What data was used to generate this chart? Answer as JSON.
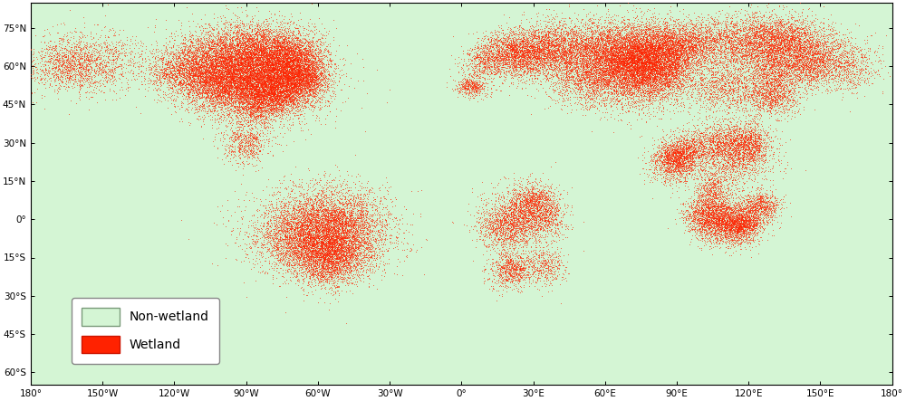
{
  "title": "",
  "background_color": "#ffffff",
  "ocean_color": "#ffffff",
  "land_nonwetland_color": "#d4f5d4",
  "wetland_color": "#ff2200",
  "border_color": "#888888",
  "legend_nonwetland_label": "Non-wetland",
  "legend_wetland_label": "Wetland",
  "legend_nonwetland_facecolor": "#d4f5d4",
  "legend_nonwetland_edgecolor": "#7a9a7a",
  "legend_wetland_facecolor": "#ff2200",
  "legend_wetland_edgecolor": "#cc1400",
  "x_ticks": [
    -180,
    -150,
    -120,
    -90,
    -60,
    -30,
    0,
    30,
    60,
    90,
    120,
    150,
    180
  ],
  "x_tick_labels": [
    "180°",
    "150°W",
    "120°W",
    "90°W",
    "60°W",
    "30°W",
    "0°",
    "30°E",
    "60°E",
    "90°E",
    "120°E",
    "150°E",
    "180°"
  ],
  "y_ticks": [
    75,
    60,
    45,
    30,
    15,
    0,
    -15,
    -30,
    -45,
    -60
  ],
  "y_tick_labels": [
    "75°N",
    "60°N",
    "45°N",
    "30°N",
    "15°N",
    "0°",
    "15°S",
    "30°S",
    "45°S",
    "60°S"
  ],
  "xlim": [
    -180,
    180
  ],
  "ylim": [
    -65,
    85
  ],
  "figsize": [
    10.0,
    4.43
  ],
  "dpi": 100,
  "tick_fontsize": 7.5,
  "legend_fontsize": 10,
  "coastline_linewidth": 0.3,
  "coastline_color": "#555555",
  "wetland_regions": [
    {
      "lon": -85,
      "lat": 55,
      "lons": 14,
      "lats": 8,
      "n": 4000
    },
    {
      "lon": -95,
      "lat": 60,
      "lons": 12,
      "lats": 7,
      "n": 3500
    },
    {
      "lon": -80,
      "lat": 52,
      "lons": 10,
      "lats": 5,
      "n": 2000
    },
    {
      "lon": -75,
      "lat": 63,
      "lons": 8,
      "lats": 6,
      "n": 2500
    },
    {
      "lon": -88,
      "lat": 67,
      "lons": 10,
      "lats": 5,
      "n": 1500
    },
    {
      "lon": -155,
      "lat": 62,
      "lons": 12,
      "lats": 6,
      "n": 1200
    },
    {
      "lon": -165,
      "lat": 60,
      "lons": 8,
      "lats": 5,
      "n": 700
    },
    {
      "lon": -68,
      "lat": 60,
      "lons": 6,
      "lats": 5,
      "n": 1500
    },
    {
      "lon": 68,
      "lat": 60,
      "lons": 12,
      "lats": 8,
      "n": 3500
    },
    {
      "lon": 75,
      "lat": 62,
      "lons": 10,
      "lats": 7,
      "n": 3000
    },
    {
      "lon": 82,
      "lat": 58,
      "lons": 8,
      "lats": 6,
      "n": 2000
    },
    {
      "lon": 60,
      "lat": 65,
      "lons": 10,
      "lats": 6,
      "n": 2000
    },
    {
      "lon": 40,
      "lat": 68,
      "lons": 8,
      "lats": 5,
      "n": 1500
    },
    {
      "lon": 125,
      "lat": 68,
      "lons": 10,
      "lats": 6,
      "n": 2000
    },
    {
      "lon": 140,
      "lat": 65,
      "lons": 10,
      "lats": 5,
      "n": 1500
    },
    {
      "lon": 100,
      "lat": 70,
      "lons": 12,
      "lats": 5,
      "n": 1500
    },
    {
      "lon": 110,
      "lat": 52,
      "lons": 8,
      "lats": 5,
      "n": 1000
    },
    {
      "lon": 130,
      "lat": 48,
      "lons": 6,
      "lats": 4,
      "n": 800
    },
    {
      "lon": -60,
      "lat": -5,
      "lons": 15,
      "lats": 8,
      "n": 2500
    },
    {
      "lon": -55,
      "lat": 0,
      "lons": 12,
      "lats": 7,
      "n": 2000
    },
    {
      "lon": -65,
      "lat": -10,
      "lons": 10,
      "lats": 6,
      "n": 1500
    },
    {
      "lon": -50,
      "lat": -15,
      "lons": 8,
      "lats": 5,
      "n": 1000
    },
    {
      "lon": -55,
      "lat": -5,
      "lons": 10,
      "lats": 6,
      "n": 1500
    },
    {
      "lon": 23,
      "lat": 0,
      "lons": 8,
      "lats": 6,
      "n": 1000
    },
    {
      "lon": 18,
      "lat": -3,
      "lons": 6,
      "lats": 4,
      "n": 700
    },
    {
      "lon": 28,
      "lat": 5,
      "lons": 5,
      "lats": 4,
      "n": 600
    },
    {
      "lon": 35,
      "lat": -18,
      "lons": 4,
      "lats": 4,
      "n": 400
    },
    {
      "lon": 103,
      "lat": 1,
      "lons": 5,
      "lats": 4,
      "n": 1200
    },
    {
      "lon": 110,
      "lat": 0,
      "lons": 6,
      "lats": 5,
      "n": 1000
    },
    {
      "lon": 115,
      "lat": -2,
      "lons": 5,
      "lats": 4,
      "n": 900
    },
    {
      "lon": 125,
      "lat": 5,
      "lons": 4,
      "lats": 3,
      "n": 700
    },
    {
      "lon": 118,
      "lat": -2,
      "lons": 4,
      "lats": 3,
      "n": 600
    },
    {
      "lon": 89,
      "lat": 22,
      "lons": 5,
      "lats": 4,
      "n": 1000
    },
    {
      "lon": 115,
      "lat": 25,
      "lons": 8,
      "lats": 6,
      "n": 1200
    },
    {
      "lon": 108,
      "lat": 30,
      "lons": 6,
      "lats": 4,
      "n": 800
    },
    {
      "lon": 120,
      "lat": 30,
      "lons": 5,
      "lats": 4,
      "n": 700
    },
    {
      "lon": 27,
      "lat": 64,
      "lons": 8,
      "lats": 5,
      "n": 1000
    },
    {
      "lon": 20,
      "lat": 66,
      "lons": 6,
      "lats": 4,
      "n": 800
    },
    {
      "lon": 10,
      "lat": 62,
      "lons": 5,
      "lats": 4,
      "n": 600
    },
    {
      "lon": 4,
      "lat": 52,
      "lons": 3,
      "lats": 2,
      "n": 400
    },
    {
      "lon": -57,
      "lat": -17,
      "lons": 6,
      "lats": 5,
      "n": 1200
    },
    {
      "lon": -90,
      "lat": 30,
      "lons": 5,
      "lats": 4,
      "n": 600
    },
    {
      "lon": 31,
      "lat": 7,
      "lons": 5,
      "lats": 4,
      "n": 500
    },
    {
      "lon": 22,
      "lat": -19,
      "lons": 4,
      "lats": 3,
      "n": 400
    },
    {
      "lon": -105,
      "lat": 55,
      "lons": 10,
      "lats": 6,
      "n": 1200
    },
    {
      "lon": -100,
      "lat": 52,
      "lons": 8,
      "lats": 5,
      "n": 1000
    },
    {
      "lon": -85,
      "lat": 45,
      "lons": 6,
      "lats": 4,
      "n": 800
    },
    {
      "lon": 30,
      "lat": 65,
      "lons": 6,
      "lats": 4,
      "n": 700
    },
    {
      "lon": 50,
      "lat": 55,
      "lons": 8,
      "lats": 5,
      "n": 800
    },
    {
      "lon": 160,
      "lat": 60,
      "lons": 8,
      "lats": 5,
      "n": 800
    },
    {
      "lon": 135,
      "lat": 72,
      "lons": 10,
      "lats": 4,
      "n": 1000
    },
    {
      "lon": -110,
      "lat": 62,
      "lons": 8,
      "lats": 5,
      "n": 800
    },
    {
      "lon": -120,
      "lat": 58,
      "lons": 6,
      "lats": 4,
      "n": 600
    },
    {
      "lon": 90,
      "lat": 25,
      "lons": 4,
      "lats": 3,
      "n": 500
    },
    {
      "lon": 105,
      "lat": 12,
      "lons": 4,
      "lats": 4,
      "n": 500
    },
    {
      "lon": 20,
      "lat": -20,
      "lons": 5,
      "lats": 4,
      "n": 400
    },
    {
      "lon": 36,
      "lat": 0,
      "lons": 4,
      "lats": 4,
      "n": 400
    },
    {
      "lon": 95,
      "lat": 28,
      "lons": 5,
      "lats": 4,
      "n": 500
    },
    {
      "lon": 130,
      "lat": 55,
      "lons": 5,
      "lats": 4,
      "n": 600
    },
    {
      "lon": 145,
      "lat": 60,
      "lons": 6,
      "lats": 4,
      "n": 700
    },
    {
      "lon": -75,
      "lat": 50,
      "lons": 6,
      "lats": 4,
      "n": 800
    },
    {
      "lon": -65,
      "lat": 55,
      "lons": 5,
      "lats": 4,
      "n": 700
    },
    {
      "lon": 80,
      "lat": 65,
      "lons": 8,
      "lats": 5,
      "n": 1000
    },
    {
      "lon": 90,
      "lat": 68,
      "lons": 8,
      "lats": 4,
      "n": 900
    }
  ]
}
